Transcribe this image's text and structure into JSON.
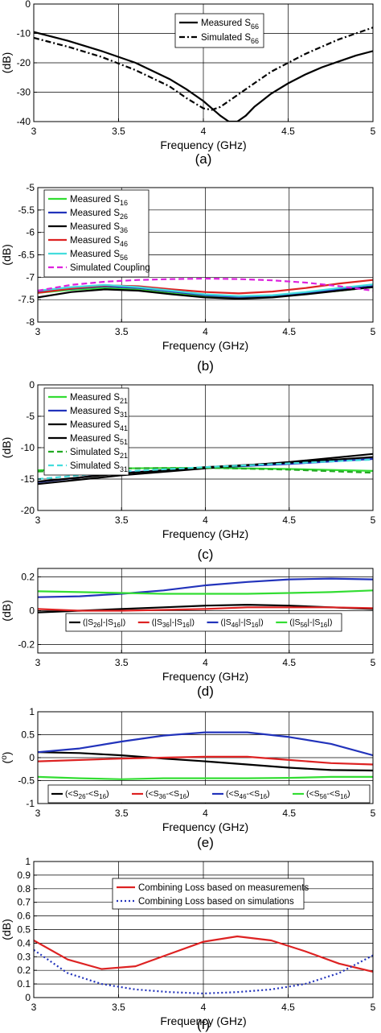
{
  "chart_data": [
    {
      "id": "a",
      "type": "line",
      "caption": "(a)",
      "xlabel": "Frequency (GHz)",
      "ylabel": "(dB)",
      "xlim": [
        3,
        5
      ],
      "ylim": [
        -40,
        0
      ],
      "xticks": [
        3,
        3.5,
        4,
        4.5,
        5
      ],
      "xtick_labels": [
        "3",
        "3.5",
        "4",
        "4.5",
        "5"
      ],
      "yticks": [
        -40,
        -30,
        -20,
        -10,
        0
      ],
      "ytick_labels": [
        "-40",
        "-30",
        "-20",
        "-10",
        "0"
      ],
      "grid": true,
      "legend_position": "top-right",
      "series": [
        {
          "name": "Measured S",
          "sub": "66",
          "color": "#000000",
          "dash": "solid",
          "x": [
            3.0,
            3.2,
            3.4,
            3.6,
            3.8,
            3.9,
            4.0,
            4.05,
            4.1,
            4.15,
            4.2,
            4.25,
            4.3,
            4.4,
            4.5,
            4.6,
            4.7,
            4.8,
            4.9,
            5.0
          ],
          "y": [
            -9.5,
            -12.5,
            -16,
            -20,
            -25.5,
            -29,
            -33,
            -35.5,
            -38,
            -40,
            -40,
            -38,
            -35,
            -30.5,
            -27,
            -24,
            -21.5,
            -19.5,
            -17.5,
            -16
          ]
        },
        {
          "name": "Simulated S",
          "sub": "66",
          "color": "#000000",
          "dash": "dashdot",
          "x": [
            3.0,
            3.2,
            3.4,
            3.6,
            3.8,
            3.9,
            4.0,
            4.05,
            4.1,
            4.2,
            4.3,
            4.4,
            4.5,
            4.6,
            4.7,
            4.8,
            4.9,
            5.0
          ],
          "y": [
            -11.5,
            -14.5,
            -18,
            -22.5,
            -28,
            -32,
            -35.5,
            -36,
            -35,
            -31,
            -27,
            -23,
            -20,
            -17,
            -14.5,
            -12,
            -10,
            -8
          ]
        }
      ]
    },
    {
      "id": "b",
      "type": "line",
      "caption": "(b)",
      "xlabel": "Frequency (GHz)",
      "ylabel": "(dB)",
      "xlim": [
        3,
        5
      ],
      "ylim": [
        -8,
        -5
      ],
      "xticks": [
        3,
        3.5,
        4,
        4.5,
        5
      ],
      "xtick_labels": [
        "3",
        "3.5",
        "4",
        "4.5",
        "5"
      ],
      "yticks": [
        -8,
        -7.5,
        -7,
        -6.5,
        -6,
        -5.5,
        -5
      ],
      "ytick_labels": [
        "-8",
        "-7.5",
        "-7",
        "-6.5",
        "-6",
        "-5.5",
        "-5"
      ],
      "grid": true,
      "legend_position": "top-left",
      "series": [
        {
          "name": "Measured S",
          "sub": "16",
          "color": "#33dd33",
          "dash": "solid",
          "x": [
            3.0,
            3.2,
            3.4,
            3.6,
            3.8,
            4.0,
            4.2,
            4.4,
            4.6,
            4.8,
            5.0
          ],
          "y": [
            -7.35,
            -7.28,
            -7.24,
            -7.28,
            -7.36,
            -7.43,
            -7.46,
            -7.43,
            -7.37,
            -7.3,
            -7.22
          ]
        },
        {
          "name": "Measured  S",
          "sub": "26",
          "color": "#2233bb",
          "dash": "solid",
          "x": [
            3.0,
            3.2,
            3.4,
            3.6,
            3.8,
            4.0,
            4.2,
            4.4,
            4.6,
            4.8,
            5.0
          ],
          "y": [
            -7.33,
            -7.26,
            -7.2,
            -7.24,
            -7.32,
            -7.4,
            -7.44,
            -7.41,
            -7.35,
            -7.27,
            -7.2
          ]
        },
        {
          "name": "Measured S",
          "sub": "36",
          "color": "#000000",
          "dash": "solid",
          "x": [
            3.0,
            3.2,
            3.4,
            3.6,
            3.8,
            4.0,
            4.2,
            4.4,
            4.6,
            4.8,
            5.0
          ],
          "y": [
            -7.45,
            -7.33,
            -7.27,
            -7.3,
            -7.38,
            -7.45,
            -7.48,
            -7.45,
            -7.38,
            -7.3,
            -7.22
          ]
        },
        {
          "name": "Measured S",
          "sub": "46",
          "color": "#dd2222",
          "dash": "solid",
          "x": [
            3.0,
            3.2,
            3.4,
            3.6,
            3.8,
            4.0,
            4.2,
            4.4,
            4.6,
            4.8,
            5.0
          ],
          "y": [
            -7.35,
            -7.25,
            -7.18,
            -7.2,
            -7.27,
            -7.33,
            -7.36,
            -7.32,
            -7.24,
            -7.14,
            -7.06
          ]
        },
        {
          "name": "Measured S",
          "sub": "56",
          "color": "#44dddd",
          "dash": "solid",
          "x": [
            3.0,
            3.2,
            3.4,
            3.6,
            3.8,
            4.0,
            4.2,
            4.4,
            4.6,
            4.8,
            5.0
          ],
          "y": [
            -7.3,
            -7.22,
            -7.17,
            -7.22,
            -7.3,
            -7.38,
            -7.42,
            -7.4,
            -7.33,
            -7.24,
            -7.16
          ]
        },
        {
          "name": "Simulated Coupling",
          "sub": "",
          "color": "#dd22dd",
          "dash": "dashed",
          "x": [
            3.0,
            3.2,
            3.4,
            3.6,
            3.8,
            4.0,
            4.2,
            4.4,
            4.6,
            4.8,
            5.0
          ],
          "y": [
            -7.3,
            -7.17,
            -7.1,
            -7.06,
            -7.04,
            -7.03,
            -7.04,
            -7.07,
            -7.12,
            -7.2,
            -7.3
          ]
        }
      ]
    },
    {
      "id": "c",
      "type": "line",
      "caption": "(c)",
      "xlabel": "Frequency (GHz)",
      "ylabel": "(dB)",
      "xlim": [
        3,
        5
      ],
      "ylim": [
        -20,
        0
      ],
      "xticks": [
        3,
        3.5,
        4,
        4.5,
        5
      ],
      "xtick_labels": [
        "3",
        "3.5",
        "4",
        "4.5",
        "5"
      ],
      "yticks": [
        -20,
        -15,
        -10,
        -5,
        0
      ],
      "ytick_labels": [
        "-20",
        "-15",
        "-10",
        "-5",
        "0"
      ],
      "grid": true,
      "legend_position": "top-left",
      "series": [
        {
          "name": "Measured S",
          "sub": "21",
          "color": "#33dd33",
          "dash": "solid",
          "x": [
            3.0,
            3.5,
            4.0,
            4.5,
            5.0
          ],
          "y": [
            -13.6,
            -13.3,
            -13.2,
            -13.4,
            -13.7
          ]
        },
        {
          "name": "Measured S",
          "sub": "31",
          "color": "#2233bb",
          "dash": "solid",
          "x": [
            3.0,
            3.5,
            4.0,
            4.5,
            5.0
          ],
          "y": [
            -15.5,
            -14.0,
            -13.2,
            -12.6,
            -11.8
          ]
        },
        {
          "name": "Measured S",
          "sub": "41",
          "color": "#000000",
          "dash": "solid",
          "x": [
            3.0,
            3.5,
            4.0,
            4.5,
            5.0
          ],
          "y": [
            -15.8,
            -14.4,
            -13.3,
            -12.3,
            -11.0
          ]
        },
        {
          "name": "Measured S",
          "sub": "51",
          "color": "#000000",
          "dash": "solid",
          "x": [
            3.0,
            3.5,
            4.0,
            4.5,
            5.0
          ],
          "y": [
            -15.4,
            -14.1,
            -13.1,
            -12.4,
            -11.5
          ]
        },
        {
          "name": "Simulated S",
          "sub": "21",
          "color": "#22aa22",
          "dash": "dashed",
          "x": [
            3.0,
            3.5,
            4.0,
            4.5,
            5.0
          ],
          "y": [
            -13.8,
            -13.3,
            -13.2,
            -13.5,
            -14.0
          ]
        },
        {
          "name": "Simulated S",
          "sub": "31",
          "color": "#44dddd",
          "dash": "dashed",
          "x": [
            3.0,
            3.5,
            4.0,
            4.5,
            5.0
          ],
          "y": [
            -15.0,
            -13.8,
            -13.1,
            -12.5,
            -11.9
          ]
        }
      ]
    },
    {
      "id": "d",
      "type": "line",
      "caption": "(d)",
      "xlabel": "Frequency (GHz)",
      "ylabel": "(dB)",
      "xlim": [
        3,
        5
      ],
      "ylim": [
        -0.25,
        0.25
      ],
      "xticks": [
        3,
        3.5,
        4,
        4.5,
        5
      ],
      "xtick_labels": [
        "3",
        "3.5",
        "4",
        "4.5",
        "5"
      ],
      "yticks": [
        -0.2,
        0,
        0.2
      ],
      "ytick_labels": [
        "-0.2",
        "0",
        "0.2"
      ],
      "grid": true,
      "legend_position": "bottom-center",
      "series": [
        {
          "name": "(|S26|-|S16|)",
          "color": "#000000",
          "dash": "solid",
          "x": [
            3.0,
            3.25,
            3.5,
            3.75,
            4.0,
            4.25,
            4.5,
            4.75,
            5.0
          ],
          "y": [
            -0.01,
            0.0,
            0.01,
            0.02,
            0.03,
            0.035,
            0.03,
            0.02,
            0.01
          ]
        },
        {
          "name": "(|S36|-|S16|)",
          "color": "#dd2222",
          "dash": "solid",
          "x": [
            3.0,
            3.25,
            3.5,
            3.75,
            4.0,
            4.25,
            4.5,
            4.75,
            5.0
          ],
          "y": [
            0.01,
            0.0,
            0.0,
            0.005,
            0.01,
            0.02,
            0.02,
            0.02,
            0.015
          ]
        },
        {
          "name": "(|S46|-|S16|)",
          "color": "#2233bb",
          "dash": "solid",
          "x": [
            3.0,
            3.25,
            3.5,
            3.75,
            4.0,
            4.25,
            4.5,
            4.75,
            5.0
          ],
          "y": [
            0.08,
            0.085,
            0.1,
            0.12,
            0.15,
            0.17,
            0.185,
            0.19,
            0.185
          ]
        },
        {
          "name": "(|S56|-|S16|)",
          "color": "#33dd33",
          "dash": "solid",
          "x": [
            3.0,
            3.25,
            3.5,
            3.75,
            4.0,
            4.25,
            4.5,
            4.75,
            5.0
          ],
          "y": [
            0.115,
            0.11,
            0.105,
            0.1,
            0.1,
            0.1,
            0.105,
            0.11,
            0.12
          ]
        }
      ]
    },
    {
      "id": "e",
      "type": "line",
      "caption": "(e)",
      "xlabel": "Frequency (GHz)",
      "ylabel": "(o)",
      "xlim": [
        3,
        5
      ],
      "ylim": [
        -1,
        1
      ],
      "xticks": [
        3,
        3.5,
        4,
        4.5,
        5
      ],
      "xtick_labels": [
        "3",
        "3.5",
        "4",
        "4.5",
        "5"
      ],
      "yticks": [
        -1,
        -0.5,
        0,
        0.5,
        1
      ],
      "ytick_labels": [
        "-1",
        "-0.5",
        "0",
        "0.5",
        "1"
      ],
      "grid": true,
      "legend_position": "bottom-center",
      "series": [
        {
          "name": "(<S26-<S16)",
          "color": "#000000",
          "dash": "solid",
          "x": [
            3.0,
            3.25,
            3.5,
            3.75,
            4.0,
            4.25,
            4.5,
            4.75,
            5.0
          ],
          "y": [
            0.12,
            0.1,
            0.05,
            -0.02,
            -0.08,
            -0.15,
            -0.22,
            -0.27,
            -0.28
          ]
        },
        {
          "name": "(<S36-<S16)",
          "color": "#dd2222",
          "dash": "solid",
          "x": [
            3.0,
            3.25,
            3.5,
            3.75,
            4.0,
            4.25,
            4.5,
            4.75,
            5.0
          ],
          "y": [
            -0.08,
            -0.05,
            -0.02,
            0.0,
            0.02,
            0.02,
            -0.05,
            -0.12,
            -0.15
          ]
        },
        {
          "name": "(<S46-<S16)",
          "color": "#2233bb",
          "dash": "solid",
          "x": [
            3.0,
            3.25,
            3.5,
            3.75,
            4.0,
            4.25,
            4.5,
            4.75,
            5.0
          ],
          "y": [
            0.12,
            0.2,
            0.35,
            0.48,
            0.55,
            0.55,
            0.45,
            0.3,
            0.05
          ]
        },
        {
          "name": "(<S56-<S16)",
          "color": "#33dd33",
          "dash": "solid",
          "x": [
            3.0,
            3.25,
            3.5,
            3.75,
            4.0,
            4.25,
            4.5,
            4.75,
            5.0
          ],
          "y": [
            -0.42,
            -0.45,
            -0.47,
            -0.45,
            -0.45,
            -0.45,
            -0.44,
            -0.42,
            -0.42
          ]
        }
      ]
    },
    {
      "id": "f",
      "type": "line",
      "caption": "(f)",
      "xlabel": "Frequency (GHz)",
      "ylabel": "(dB)",
      "xlim": [
        3,
        5
      ],
      "ylim": [
        0,
        1
      ],
      "xticks": [
        3,
        3.5,
        4,
        4.5,
        5
      ],
      "xtick_labels": [
        "3",
        "3.5",
        "4",
        "4.5",
        "5"
      ],
      "yticks": [
        0,
        0.1,
        0.2,
        0.3,
        0.4,
        0.5,
        0.6,
        0.7,
        0.8,
        0.9,
        1
      ],
      "ytick_labels": [
        "0",
        "0.1",
        "0.2",
        "0.3",
        "0.4",
        "0.5",
        "0.6",
        "0.7",
        "0.8",
        "0.9",
        "1"
      ],
      "grid": true,
      "legend_position": "top-center",
      "series": [
        {
          "name": "Combining Loss based on measurements",
          "color": "#dd2222",
          "dash": "solid",
          "x": [
            3.0,
            3.2,
            3.4,
            3.6,
            3.8,
            4.0,
            4.2,
            4.4,
            4.6,
            4.8,
            5.0
          ],
          "y": [
            0.42,
            0.28,
            0.21,
            0.23,
            0.32,
            0.41,
            0.45,
            0.42,
            0.34,
            0.25,
            0.19
          ]
        },
        {
          "name": "Combining Loss based on simulations",
          "color": "#2233bb",
          "dash": "dotted",
          "x": [
            3.0,
            3.2,
            3.4,
            3.6,
            3.8,
            4.0,
            4.2,
            4.4,
            4.6,
            4.8,
            5.0
          ],
          "y": [
            0.35,
            0.18,
            0.1,
            0.06,
            0.04,
            0.03,
            0.04,
            0.06,
            0.1,
            0.18,
            0.31
          ]
        }
      ]
    }
  ]
}
